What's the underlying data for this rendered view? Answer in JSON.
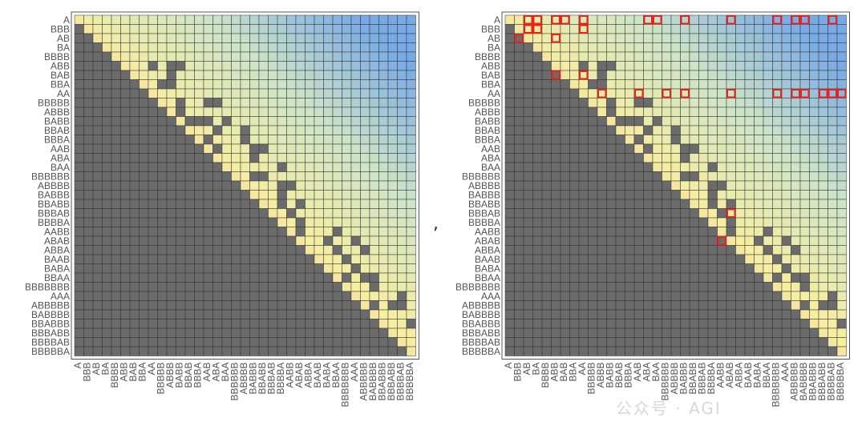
{
  "separator": ",",
  "watermark": "公众号 · AGI",
  "chart_data": [
    {
      "type": "heatmap",
      "title": "",
      "xlabel": "",
      "ylabel": "",
      "row_labels": [
        "A",
        "BBB",
        "AB",
        "BA",
        "BBBB",
        "ABB",
        "BAB",
        "BBA",
        "AA",
        "BBBBB",
        "ABBB",
        "BABB",
        "BBAB",
        "BBBA",
        "AAB",
        "ABA",
        "BAA",
        "BBBBBB",
        "ABBBB",
        "BABBB",
        "BBABB",
        "BBBAB",
        "BBBBA",
        "AABB",
        "ABAB",
        "ABBA",
        "BAAB",
        "BABA",
        "BBAA",
        "BBBBBBB",
        "AAA",
        "ABBBBB",
        "BABBBB",
        "BBABBB",
        "BBBABB",
        "BBBBAB",
        "BBBBBA"
      ],
      "col_labels": [
        "A",
        "BBB",
        "AB",
        "BA",
        "BBBB",
        "ABB",
        "BAB",
        "BBA",
        "AA",
        "BBBBB",
        "ABBB",
        "BABB",
        "BBAB",
        "BBBA",
        "AAB",
        "ABA",
        "BAA",
        "BBBBBB",
        "ABBBB",
        "BABBB",
        "BBABB",
        "BBBAB",
        "BBBBA",
        "AABB",
        "ABAB",
        "ABBA",
        "BAAB",
        "BABA",
        "BBAA",
        "BBBBBBB",
        "AAA",
        "ABBBBB",
        "BABBBB",
        "BBABBB",
        "BBBABB",
        "BBBBAB",
        "BBBBBA"
      ],
      "cell_states": [
        "dark (below diagonal / masked)",
        "pale yellow (diagonal)",
        "color gradient yellow to blue (upper triangle)"
      ],
      "highlighted_cells": []
    },
    {
      "type": "heatmap",
      "title": "",
      "xlabel": "",
      "ylabel": "",
      "row_labels": [
        "A",
        "BBB",
        "AB",
        "BA",
        "BBBB",
        "ABB",
        "BAB",
        "BBA",
        "AA",
        "BBBBB",
        "ABBB",
        "BABB",
        "BBAB",
        "BBBA",
        "AAB",
        "ABA",
        "BAA",
        "BBBBBB",
        "ABBBB",
        "BABBB",
        "BBABB",
        "BBBAB",
        "BBBBA",
        "AABB",
        "ABAB",
        "ABBA",
        "BAAB",
        "BABA",
        "BBAA",
        "BBBBBBB",
        "AAA",
        "ABBBBB",
        "BABBBB",
        "BBABBB",
        "BBBABB",
        "BBBBAB",
        "BBBBBA"
      ],
      "col_labels": [
        "A",
        "BBB",
        "AB",
        "BA",
        "BBBB",
        "ABB",
        "BAB",
        "BBA",
        "AA",
        "BBBBB",
        "ABBB",
        "BABB",
        "BBAB",
        "BBBA",
        "AAB",
        "ABA",
        "BAA",
        "BBBBBB",
        "ABBBB",
        "BABBB",
        "BBABB",
        "BBBAB",
        "BBBBA",
        "AABB",
        "ABAB",
        "ABBA",
        "BAAB",
        "BABA",
        "BBAA",
        "BBBBBBB",
        "AAA",
        "ABBBBB",
        "BABBBB",
        "BBABBB",
        "BBBABB",
        "BBBBAB",
        "BBBBBA"
      ],
      "highlighted_cells": [
        [
          0,
          2
        ],
        [
          0,
          3
        ],
        [
          0,
          5
        ],
        [
          0,
          6
        ],
        [
          0,
          8
        ],
        [
          0,
          15
        ],
        [
          0,
          16
        ],
        [
          0,
          19
        ],
        [
          0,
          24
        ],
        [
          0,
          29
        ],
        [
          0,
          31
        ],
        [
          0,
          32
        ],
        [
          0,
          35
        ],
        [
          1,
          2
        ],
        [
          1,
          3
        ],
        [
          1,
          8
        ],
        [
          2,
          1
        ],
        [
          2,
          5
        ],
        [
          6,
          5
        ],
        [
          6,
          8
        ],
        [
          8,
          10
        ],
        [
          8,
          14
        ],
        [
          8,
          17
        ],
        [
          8,
          19
        ],
        [
          8,
          24
        ],
        [
          8,
          29
        ],
        [
          8,
          31
        ],
        [
          8,
          32
        ],
        [
          8,
          34
        ],
        [
          8,
          35
        ],
        [
          8,
          36
        ],
        [
          21,
          24
        ],
        [
          24,
          23
        ]
      ],
      "highlight_color": "#e8231c"
    }
  ],
  "colors": {
    "dark_cell": "#6b6b6b",
    "diag_cell": "#f5e6a0",
    "grid_line": "#333333",
    "label_text": "#555555"
  }
}
